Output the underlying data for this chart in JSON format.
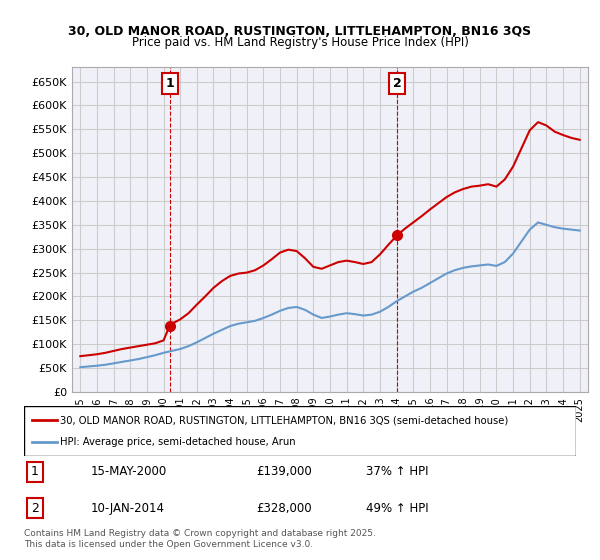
{
  "title_line1": "30, OLD MANOR ROAD, RUSTINGTON, LITTLEHAMPTON, BN16 3QS",
  "title_line2": "Price paid vs. HM Land Registry's House Price Index (HPI)",
  "background_color": "#ffffff",
  "grid_color": "#cccccc",
  "plot_bg": "#f0f0f8",
  "red_line_color": "#cc0000",
  "blue_line_color": "#6699cc",
  "sale1_x": 2000.37,
  "sale1_y": 139000,
  "sale1_label": "1",
  "sale2_x": 2014.03,
  "sale2_y": 328000,
  "sale2_label": "2",
  "vline1_x": 2000.37,
  "vline2_x": 2014.03,
  "legend_entry1": "30, OLD MANOR ROAD, RUSTINGTON, LITTLEHAMPTON, BN16 3QS (semi-detached house)",
  "legend_entry2": "HPI: Average price, semi-detached house, Arun",
  "table_entries": [
    {
      "num": "1",
      "date": "15-MAY-2000",
      "price": "£139,000",
      "pct": "37% ↑ HPI"
    },
    {
      "num": "2",
      "date": "10-JAN-2014",
      "price": "£328,000",
      "pct": "49% ↑ HPI"
    }
  ],
  "footer": "Contains HM Land Registry data © Crown copyright and database right 2025.\nThis data is licensed under the Open Government Licence v3.0.",
  "ylim": [
    0,
    680000
  ],
  "yticks": [
    0,
    50000,
    100000,
    150000,
    200000,
    250000,
    300000,
    350000,
    400000,
    450000,
    500000,
    550000,
    600000,
    650000
  ],
  "xlim_min": 1994.5,
  "xlim_max": 2025.5,
  "red_data": {
    "x": [
      1995.0,
      1995.5,
      1996.0,
      1996.5,
      1997.0,
      1997.5,
      1998.0,
      1998.5,
      1999.0,
      1999.5,
      2000.0,
      2000.37,
      2000.5,
      2001.0,
      2001.5,
      2002.0,
      2002.5,
      2003.0,
      2003.5,
      2004.0,
      2004.5,
      2005.0,
      2005.5,
      2006.0,
      2006.5,
      2007.0,
      2007.5,
      2008.0,
      2008.5,
      2009.0,
      2009.5,
      2010.0,
      2010.5,
      2011.0,
      2011.5,
      2012.0,
      2012.5,
      2013.0,
      2013.5,
      2014.03,
      2014.5,
      2015.0,
      2015.5,
      2016.0,
      2016.5,
      2017.0,
      2017.5,
      2018.0,
      2018.5,
      2019.0,
      2019.5,
      2020.0,
      2020.5,
      2021.0,
      2021.5,
      2022.0,
      2022.5,
      2023.0,
      2023.5,
      2024.0,
      2024.5,
      2025.0
    ],
    "y": [
      75000,
      77000,
      79000,
      82000,
      86000,
      90000,
      93000,
      96000,
      99000,
      102000,
      108000,
      139000,
      143000,
      152000,
      165000,
      183000,
      200000,
      218000,
      232000,
      243000,
      248000,
      250000,
      255000,
      265000,
      278000,
      292000,
      298000,
      295000,
      280000,
      262000,
      258000,
      265000,
      272000,
      275000,
      272000,
      268000,
      272000,
      288000,
      308000,
      328000,
      342000,
      355000,
      368000,
      382000,
      395000,
      408000,
      418000,
      425000,
      430000,
      432000,
      435000,
      430000,
      445000,
      472000,
      510000,
      548000,
      565000,
      558000,
      545000,
      538000,
      532000,
      528000
    ]
  },
  "blue_data": {
    "x": [
      1995.0,
      1995.5,
      1996.0,
      1996.5,
      1997.0,
      1997.5,
      1998.0,
      1998.5,
      1999.0,
      1999.5,
      2000.0,
      2000.5,
      2001.0,
      2001.5,
      2002.0,
      2002.5,
      2003.0,
      2003.5,
      2004.0,
      2004.5,
      2005.0,
      2005.5,
      2006.0,
      2006.5,
      2007.0,
      2007.5,
      2008.0,
      2008.5,
      2009.0,
      2009.5,
      2010.0,
      2010.5,
      2011.0,
      2011.5,
      2012.0,
      2012.5,
      2013.0,
      2013.5,
      2014.0,
      2014.5,
      2015.0,
      2015.5,
      2016.0,
      2016.5,
      2017.0,
      2017.5,
      2018.0,
      2018.5,
      2019.0,
      2019.5,
      2020.0,
      2020.5,
      2021.0,
      2021.5,
      2022.0,
      2022.5,
      2023.0,
      2023.5,
      2024.0,
      2024.5,
      2025.0
    ],
    "y": [
      52000,
      53500,
      55000,
      57000,
      60000,
      63000,
      66000,
      69000,
      73000,
      77000,
      82000,
      86000,
      90000,
      96000,
      104000,
      113000,
      122000,
      130000,
      138000,
      143000,
      146000,
      149000,
      155000,
      162000,
      170000,
      176000,
      178000,
      172000,
      162000,
      155000,
      158000,
      162000,
      165000,
      163000,
      160000,
      162000,
      168000,
      178000,
      190000,
      200000,
      210000,
      218000,
      228000,
      238000,
      248000,
      255000,
      260000,
      263000,
      265000,
      267000,
      264000,
      272000,
      290000,
      315000,
      340000,
      355000,
      350000,
      345000,
      342000,
      340000,
      338000
    ]
  }
}
